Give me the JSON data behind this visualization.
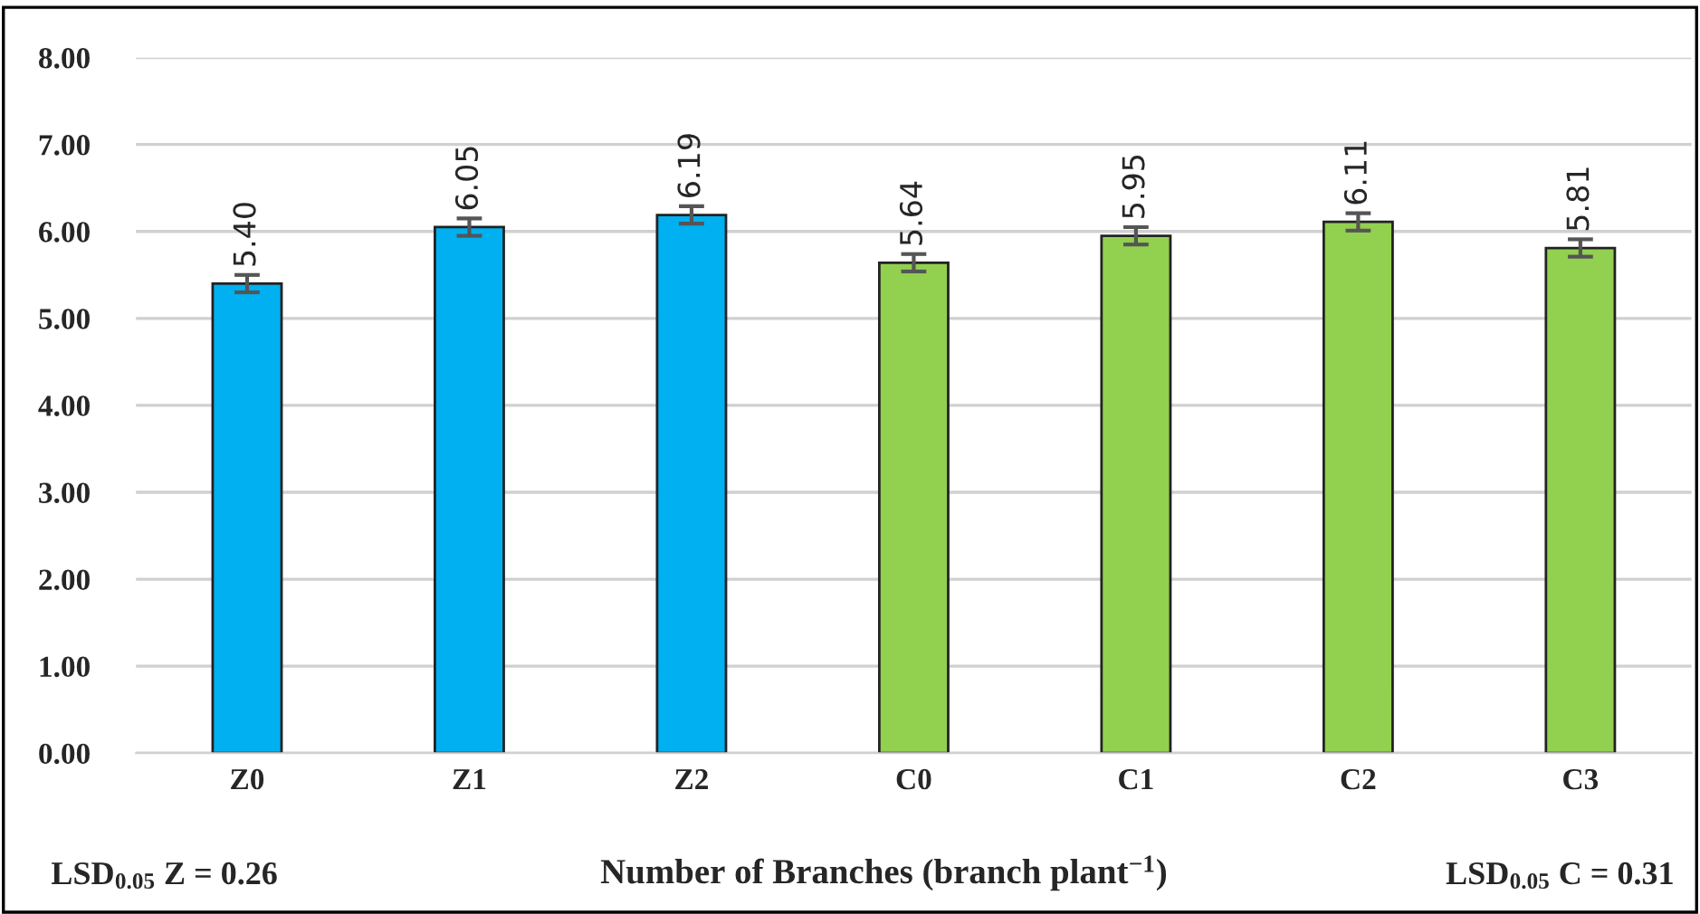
{
  "chart_data": {
    "type": "bar",
    "xlabel": "Number of Branches (branch plant$^{−1}$)",
    "categories": [
      "Z0",
      "Z1",
      "Z2",
      "C0",
      "C1",
      "C2",
      "C3"
    ],
    "values": [
      5.4,
      6.05,
      6.19,
      5.64,
      5.95,
      6.11,
      5.81
    ],
    "colors": [
      "#00b0f0",
      "#00b0f0",
      "#00b0f0",
      "#92d050",
      "#92d050",
      "#92d050",
      "#92d050"
    ],
    "errors": [
      0.1,
      0.1,
      0.1,
      0.1,
      0.1,
      0.1,
      0.1
    ],
    "value_labels": [
      "5.40",
      "6.05",
      "6.19",
      "5.64",
      "5.95",
      "6.11",
      "5.81"
    ],
    "ylim": [
      0,
      8
    ],
    "yticks": [
      {
        "value": 0,
        "label": "0.00"
      },
      {
        "value": 1,
        "label": "1.00"
      },
      {
        "value": 2,
        "label": "2.00"
      },
      {
        "value": 3,
        "label": "3.00"
      },
      {
        "value": 4,
        "label": "4.00"
      },
      {
        "value": 5,
        "label": "5.00"
      },
      {
        "value": 6,
        "label": "6.00"
      },
      {
        "value": 7,
        "label": "7.00"
      },
      {
        "value": 8,
        "label": "8.00"
      }
    ],
    "grid": "y",
    "annotations": [
      "LSD$_{0.05}$ Z = 0.26",
      "LSD$_{0.05}$ C = 0.31"
    ]
  }
}
